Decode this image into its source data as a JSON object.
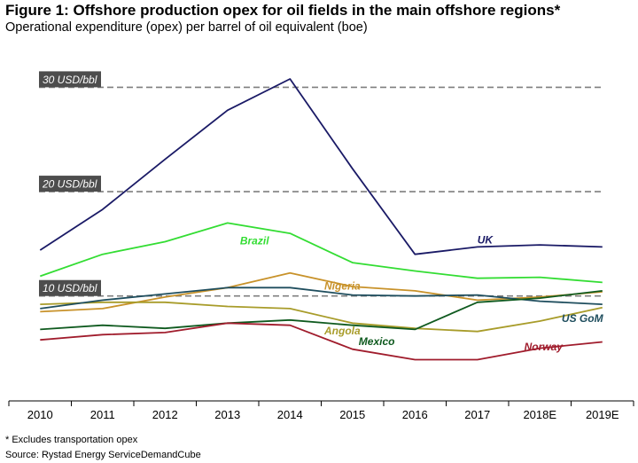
{
  "header": {
    "title": "Figure 1: Offshore production opex for oil fields in the main offshore regions*",
    "subtitle": "Operational expenditure (opex) per barrel of oil equivalent (boe)"
  },
  "footer": {
    "note": "* Excludes transportation opex",
    "source": "Source: Rystad Energy ServiceDemandCube"
  },
  "chart_data": {
    "type": "line",
    "title": "Figure 1: Offshore production opex for oil fields in the main offshore regions*",
    "subtitle": "Operational expenditure (opex) per barrel of oil equivalent (boe)",
    "xlabel": "",
    "ylabel": "",
    "categories": [
      "2010",
      "2011",
      "2012",
      "2013",
      "2014",
      "2015",
      "2016",
      "2017",
      "2018E",
      "2019E"
    ],
    "ylim": [
      0,
      32
    ],
    "grid": false,
    "legend": "none",
    "reference_lines": [
      {
        "value": 30,
        "label": "30 USD/bbl"
      },
      {
        "value": 20,
        "label": "20 USD/bbl"
      },
      {
        "value": 10,
        "label": "10 USD/bbl"
      }
    ],
    "series": [
      {
        "name": "UK",
        "color": "#1a1a66",
        "values": [
          14.4,
          18.3,
          23.1,
          27.8,
          30.8,
          22.2,
          14.0,
          14.7,
          14.9,
          14.7
        ]
      },
      {
        "name": "Brazil",
        "color": "#33dd33",
        "values": [
          11.9,
          14.0,
          15.2,
          17.0,
          16.0,
          13.2,
          12.4,
          11.7,
          11.8,
          11.3
        ]
      },
      {
        "name": "Nigeria",
        "color": "#c8922a",
        "values": [
          8.5,
          8.8,
          9.9,
          10.8,
          12.2,
          10.9,
          10.5,
          9.6,
          9.9,
          10.4
        ]
      },
      {
        "name": "Angola",
        "color": "#a89c2a",
        "values": [
          9.2,
          9.4,
          9.4,
          9.0,
          8.8,
          7.4,
          6.9,
          6.6,
          7.6,
          8.9
        ]
      },
      {
        "name": "US GoM",
        "color": "#1f4e5e",
        "values": [
          8.8,
          9.6,
          10.2,
          10.8,
          10.8,
          10.1,
          10.0,
          10.1,
          9.5,
          9.2
        ]
      },
      {
        "name": "Mexico",
        "color": "#0f5a1f",
        "values": [
          6.8,
          7.2,
          6.9,
          7.4,
          7.7,
          7.2,
          6.8,
          9.4,
          9.8,
          10.5
        ]
      },
      {
        "name": "Norway",
        "color": "#a01c2c",
        "values": [
          5.8,
          6.3,
          6.5,
          7.4,
          7.2,
          4.9,
          3.9,
          3.9,
          5.0,
          5.6
        ]
      }
    ],
    "annotations": [
      "UK",
      "Brazil",
      "Nigeria",
      "Angola",
      "US GoM",
      "Mexico",
      "Norway"
    ]
  }
}
